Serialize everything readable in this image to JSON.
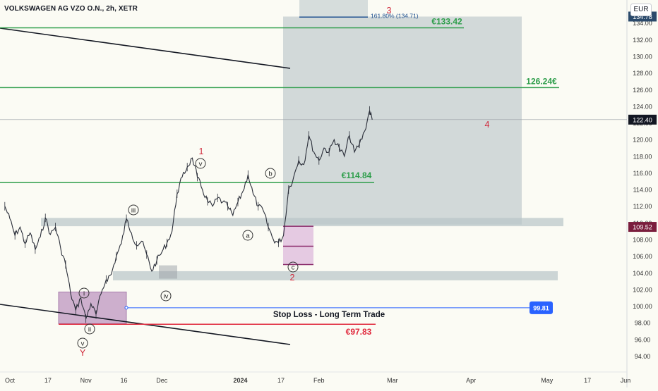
{
  "header": {
    "title": "VOLKSWAGEN AG VZO O.N., 2h, XETR",
    "currency": "EUR"
  },
  "colors": {
    "green": "#2e9e4b",
    "red": "#e0283c",
    "blue": "#2962ff",
    "zone": "#b8c4c8",
    "purple_box": "#c9a7c9"
  },
  "chart_data": {
    "type": "line",
    "title": "VOLKSWAGEN AG VZO O.N., 2h, XETR",
    "xlabel": "",
    "ylabel": "",
    "ylim": [
      93,
      137
    ],
    "y_ticks": [
      94,
      96,
      98,
      100,
      102,
      104,
      106,
      108,
      110,
      112,
      114,
      116,
      118,
      120,
      122,
      124,
      126,
      128,
      130,
      132,
      134
    ],
    "x_ticks": [
      {
        "label": "Oct",
        "date": "2023-10-02"
      },
      {
        "label": "17",
        "date": "2023-10-17"
      },
      {
        "label": "Nov",
        "date": "2023-11-01"
      },
      {
        "label": "16",
        "date": "2023-11-16"
      },
      {
        "label": "Dec",
        "date": "2023-12-01"
      },
      {
        "label": "2024",
        "date": "2024-01-01"
      },
      {
        "label": "17",
        "date": "2024-01-17"
      },
      {
        "label": "Feb",
        "date": "2024-02-01"
      },
      {
        "label": "Mar",
        "date": "2024-03-01"
      },
      {
        "label": "Apr",
        "date": "2024-04-01"
      },
      {
        "label": "May",
        "date": "2024-05-01"
      },
      {
        "label": "17",
        "date": "2024-05-17"
      },
      {
        "label": "Jun",
        "date": "2024-06-01"
      }
    ],
    "series": [
      {
        "values": [
          [
            "2023-09-30",
            112.0
          ],
          [
            "2023-10-02",
            110.5
          ],
          [
            "2023-10-04",
            108.5
          ],
          [
            "2023-10-06",
            109.5
          ],
          [
            "2023-10-08",
            107.5
          ],
          [
            "2023-10-10",
            108.8
          ],
          [
            "2023-10-12",
            106.8
          ],
          [
            "2023-10-14",
            108.3
          ],
          [
            "2023-10-16",
            110.6
          ],
          [
            "2023-10-18",
            108.6
          ],
          [
            "2023-10-20",
            109.5
          ],
          [
            "2023-10-22",
            107.0
          ],
          [
            "2023-10-24",
            105.0
          ],
          [
            "2023-10-26",
            101.5
          ],
          [
            "2023-10-28",
            99.5
          ],
          [
            "2023-10-30",
            101.0
          ],
          [
            "2023-11-01",
            98.5
          ],
          [
            "2023-11-03",
            100.3
          ],
          [
            "2023-11-05",
            99.0
          ],
          [
            "2023-11-07",
            101.5
          ],
          [
            "2023-11-09",
            103.2
          ],
          [
            "2023-11-11",
            103.8
          ],
          [
            "2023-11-13",
            106.0
          ],
          [
            "2023-11-15",
            107.5
          ],
          [
            "2023-11-17",
            110.5
          ],
          [
            "2023-11-19",
            108.8
          ],
          [
            "2023-11-21",
            107.3
          ],
          [
            "2023-11-23",
            107.8
          ],
          [
            "2023-11-25",
            106.2
          ],
          [
            "2023-11-27",
            104.2
          ],
          [
            "2023-11-29",
            105.5
          ],
          [
            "2023-12-01",
            106.5
          ],
          [
            "2023-12-03",
            107.6
          ],
          [
            "2023-12-05",
            109.0
          ],
          [
            "2023-12-07",
            113.5
          ],
          [
            "2023-12-09",
            115.5
          ],
          [
            "2023-12-11",
            116.7
          ],
          [
            "2023-12-13",
            117.8
          ],
          [
            "2023-12-15",
            115.5
          ],
          [
            "2023-12-17",
            114.0
          ],
          [
            "2023-12-19",
            112.6
          ],
          [
            "2023-12-21",
            112.0
          ],
          [
            "2023-12-23",
            113.0
          ],
          [
            "2023-12-25",
            112.5
          ],
          [
            "2023-12-27",
            112.0
          ],
          [
            "2023-12-29",
            110.9
          ],
          [
            "2023-12-31",
            112.5
          ],
          [
            "2024-01-02",
            113.8
          ],
          [
            "2024-01-04",
            115.8
          ],
          [
            "2024-01-06",
            113.5
          ],
          [
            "2024-01-08",
            112.0
          ],
          [
            "2024-01-10",
            111.5
          ],
          [
            "2024-01-12",
            109.5
          ],
          [
            "2024-01-14",
            108.0
          ],
          [
            "2024-01-16",
            107.6
          ],
          [
            "2024-01-18",
            108.5
          ],
          [
            "2024-01-20",
            114.0
          ],
          [
            "2024-01-22",
            115.5
          ],
          [
            "2024-01-24",
            117.5
          ],
          [
            "2024-01-26",
            117.0
          ],
          [
            "2024-01-28",
            120.5
          ],
          [
            "2024-01-30",
            118.5
          ],
          [
            "2024-02-01",
            117.5
          ],
          [
            "2024-02-03",
            119.0
          ],
          [
            "2024-02-05",
            118.5
          ],
          [
            "2024-02-07",
            120.0
          ],
          [
            "2024-02-09",
            119.0
          ],
          [
            "2024-02-11",
            118.0
          ],
          [
            "2024-02-13",
            120.5
          ],
          [
            "2024-02-15",
            118.5
          ],
          [
            "2024-02-17",
            119.5
          ],
          [
            "2024-02-19",
            121.0
          ],
          [
            "2024-02-21",
            123.5
          ],
          [
            "2024-02-22",
            122.4
          ]
        ]
      }
    ],
    "last_price": {
      "value": 122.4,
      "label": "122.40"
    },
    "axis_badges": [
      {
        "label": "134.78",
        "value": 134.78
      },
      {
        "label": "109.52",
        "value": 109.52
      }
    ],
    "horizontal_levels": [
      {
        "label": "€133.42",
        "value": 133.42
      },
      {
        "label": "126.24€",
        "value": 126.24
      },
      {
        "label": "€114.84",
        "value": 114.84
      },
      {
        "label": "€97.83",
        "value": 97.83
      }
    ],
    "stop_loss": {
      "label": "Stop Loss - Long Term Trade",
      "value": 99.81,
      "badge": "99.81"
    },
    "fib_label": "161.80% (134.71)",
    "wave_labels": {
      "big": [
        "3",
        "1",
        "2",
        "4",
        "Y"
      ],
      "circled": [
        "v",
        "iii",
        "i",
        "ii",
        "iv",
        "v",
        "a",
        "b",
        "c"
      ]
    }
  }
}
